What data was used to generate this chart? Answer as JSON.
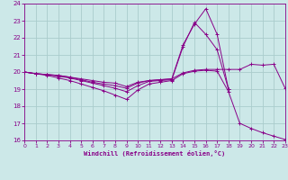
{
  "xlabel": "Windchill (Refroidissement éolien,°C)",
  "bg_color": "#cce8e8",
  "grid_color": "#aacccc",
  "line_color": "#880088",
  "xmin": 0,
  "xmax": 23,
  "ymin": 16,
  "ymax": 24,
  "yticks": [
    16,
    17,
    18,
    19,
    20,
    21,
    22,
    23,
    24
  ],
  "xticks": [
    0,
    1,
    2,
    3,
    4,
    5,
    6,
    7,
    8,
    9,
    10,
    11,
    12,
    13,
    14,
    15,
    16,
    17,
    18,
    19,
    20,
    21,
    22,
    23
  ],
  "lines": [
    {
      "x": [
        0,
        1,
        2,
        3,
        4,
        5,
        6,
        7,
        8,
        9,
        10,
        11,
        12,
        13,
        14,
        15,
        16,
        17,
        18
      ],
      "y": [
        20.0,
        19.9,
        19.85,
        19.8,
        19.7,
        19.55,
        19.4,
        19.3,
        19.2,
        19.05,
        19.35,
        19.5,
        19.55,
        19.6,
        21.6,
        22.8,
        23.7,
        22.2,
        19.0
      ]
    },
    {
      "x": [
        0,
        1,
        2,
        3,
        4,
        5,
        6,
        7,
        8,
        9,
        10,
        11,
        12,
        13,
        14,
        15,
        16,
        17,
        18
      ],
      "y": [
        20.0,
        19.9,
        19.85,
        19.75,
        19.65,
        19.5,
        19.35,
        19.2,
        19.05,
        18.85,
        19.2,
        19.45,
        19.5,
        19.55,
        21.5,
        22.9,
        22.2,
        21.3,
        19.0
      ]
    },
    {
      "x": [
        0,
        1,
        2,
        3,
        4,
        5,
        6,
        7,
        8,
        9,
        10,
        11,
        12,
        13,
        14,
        15,
        16,
        17,
        18,
        19,
        20,
        21,
        22,
        23
      ],
      "y": [
        20.0,
        19.9,
        19.85,
        19.8,
        19.7,
        19.6,
        19.5,
        19.4,
        19.35,
        19.15,
        19.4,
        19.5,
        19.55,
        19.6,
        19.95,
        20.1,
        20.15,
        20.15,
        20.15,
        20.15,
        20.45,
        20.4,
        20.45,
        19.05
      ]
    },
    {
      "x": [
        0,
        1,
        2,
        3,
        4,
        5,
        6,
        7,
        8,
        9,
        10,
        11,
        12,
        13,
        14,
        15,
        16,
        17,
        18,
        19,
        20,
        21,
        22,
        23
      ],
      "y": [
        20.0,
        19.9,
        19.8,
        19.65,
        19.5,
        19.3,
        19.1,
        18.9,
        18.65,
        18.4,
        18.95,
        19.3,
        19.4,
        19.5,
        19.9,
        20.05,
        20.1,
        20.05,
        18.85,
        17.0,
        16.7,
        16.45,
        16.25,
        16.05
      ]
    }
  ]
}
